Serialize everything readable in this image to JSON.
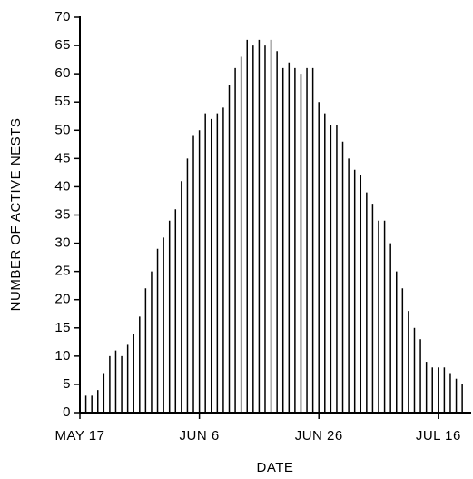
{
  "chart_data": {
    "type": "bar",
    "xlabel": "DATE",
    "ylabel": "NUMBER OF ACTIVE NESTS",
    "color": "#000000",
    "x": [
      1,
      2,
      3,
      4,
      5,
      6,
      7,
      8,
      9,
      10,
      11,
      12,
      13,
      14,
      15,
      16,
      17,
      18,
      19,
      20,
      21,
      22,
      23,
      24,
      25,
      26,
      27,
      28,
      29,
      30,
      31,
      32,
      33,
      34,
      35,
      36,
      37,
      38,
      39,
      40,
      41,
      42,
      43,
      44,
      45,
      46,
      47,
      48,
      49,
      50,
      51,
      52,
      53,
      54,
      55,
      56,
      57,
      58,
      59,
      60,
      61,
      62,
      63,
      64
    ],
    "values": [
      3,
      3,
      4,
      7,
      10,
      11,
      10,
      12,
      14,
      17,
      22,
      25,
      29,
      31,
      34,
      36,
      41,
      45,
      49,
      50,
      53,
      52,
      53,
      54,
      58,
      61,
      63,
      66,
      65,
      66,
      65,
      66,
      64,
      61,
      62,
      61,
      60,
      61,
      61,
      55,
      53,
      51,
      51,
      48,
      45,
      43,
      42,
      39,
      37,
      34,
      34,
      30,
      25,
      22,
      18,
      15,
      13,
      9,
      8,
      8,
      8,
      7,
      6,
      5
    ],
    "xlim": [
      0,
      65.5
    ],
    "xticks": [
      {
        "value": 0,
        "label": "MAY 17"
      },
      {
        "value": 20,
        "label": "JUN 6"
      },
      {
        "value": 40,
        "label": "JUN 26"
      },
      {
        "value": 60,
        "label": "JUL 16"
      }
    ],
    "ylim": [
      0,
      70
    ],
    "yticks": [
      0,
      5,
      10,
      15,
      20,
      25,
      30,
      35,
      40,
      45,
      50,
      55,
      60,
      65,
      70
    ]
  }
}
